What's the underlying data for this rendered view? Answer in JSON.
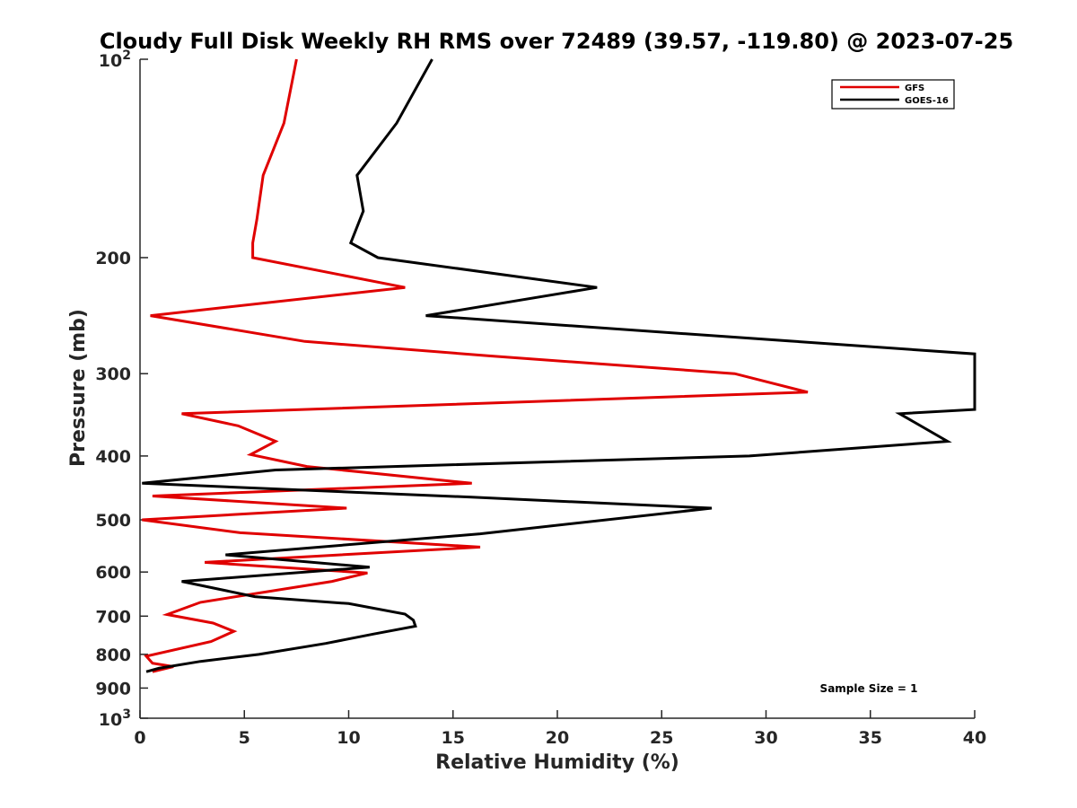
{
  "chart_data": {
    "type": "line",
    "title": "Cloudy Full Disk Weekly RH RMS over 72489 (39.57, -119.80) @ 2023-07-25",
    "xlabel": "Relative Humidity (%)",
    "ylabel": "Pressure (mb)",
    "xlim": [
      0,
      40
    ],
    "ylim": [
      100,
      1000
    ],
    "y_scale": "log",
    "y_reversed": true,
    "grid": false,
    "legend_position": "top-right",
    "x_ticks": [
      0,
      5,
      10,
      15,
      20,
      25,
      30,
      35,
      40
    ],
    "y_ticks": [
      {
        "value": 100,
        "base": "10",
        "exp": "2"
      },
      {
        "value": 200,
        "label": "200"
      },
      {
        "value": 300,
        "label": "300"
      },
      {
        "value": 400,
        "label": "400"
      },
      {
        "value": 500,
        "label": "500"
      },
      {
        "value": 600,
        "label": "600"
      },
      {
        "value": 700,
        "label": "700"
      },
      {
        "value": 800,
        "label": "800"
      },
      {
        "value": 900,
        "label": "900"
      },
      {
        "value": 1000,
        "base": "10",
        "exp": "3"
      }
    ],
    "series": [
      {
        "name": "GFS",
        "color": "#e00000",
        "points": [
          [
            7.5,
            100
          ],
          [
            6.9,
            125
          ],
          [
            5.9,
            150
          ],
          [
            5.6,
            175
          ],
          [
            5.4,
            190
          ],
          [
            5.4,
            200
          ],
          [
            12.7,
            222
          ],
          [
            0.5,
            245
          ],
          [
            7.9,
            268
          ],
          [
            16.8,
            282
          ],
          [
            28.5,
            300
          ],
          [
            32.0,
            320
          ],
          [
            2.0,
            345
          ],
          [
            4.7,
            360
          ],
          [
            6.5,
            380
          ],
          [
            5.3,
            398
          ],
          [
            8.0,
            415
          ],
          [
            15.9,
            440
          ],
          [
            0.6,
            460
          ],
          [
            9.9,
            480
          ],
          [
            0.1,
            500
          ],
          [
            4.8,
            523
          ],
          [
            16.3,
            550
          ],
          [
            3.1,
            580
          ],
          [
            10.9,
            602
          ],
          [
            9.2,
            620
          ],
          [
            2.9,
            667
          ],
          [
            1.3,
            696
          ],
          [
            3.5,
            717
          ],
          [
            4.5,
            738
          ],
          [
            3.4,
            765
          ],
          [
            0.3,
            805
          ],
          [
            0.6,
            825
          ],
          [
            1.6,
            835
          ],
          [
            0.6,
            850
          ]
        ]
      },
      {
        "name": "GOES-16",
        "color": "#000000",
        "points": [
          [
            14.0,
            100
          ],
          [
            12.3,
            125
          ],
          [
            10.4,
            150
          ],
          [
            10.7,
            170
          ],
          [
            10.1,
            190
          ],
          [
            11.4,
            200
          ],
          [
            21.9,
            222
          ],
          [
            13.7,
            245
          ],
          [
            40.0,
            280
          ],
          [
            40.0,
            340
          ],
          [
            36.4,
            345
          ],
          [
            38.7,
            380
          ],
          [
            29.2,
            400
          ],
          [
            6.5,
            420
          ],
          [
            0.1,
            440
          ],
          [
            15.9,
            462
          ],
          [
            27.4,
            480
          ],
          [
            16.3,
            525
          ],
          [
            4.1,
            565
          ],
          [
            11.0,
            590
          ],
          [
            2.0,
            620
          ],
          [
            5.5,
            654
          ],
          [
            10.0,
            670
          ],
          [
            12.7,
            695
          ],
          [
            13.1,
            710
          ],
          [
            13.2,
            725
          ],
          [
            11.2,
            745
          ],
          [
            8.9,
            770
          ],
          [
            5.7,
            800
          ],
          [
            2.9,
            820
          ],
          [
            0.9,
            840
          ],
          [
            0.3,
            850
          ]
        ]
      }
    ],
    "annotations": [
      "Sample Size = 1"
    ]
  }
}
